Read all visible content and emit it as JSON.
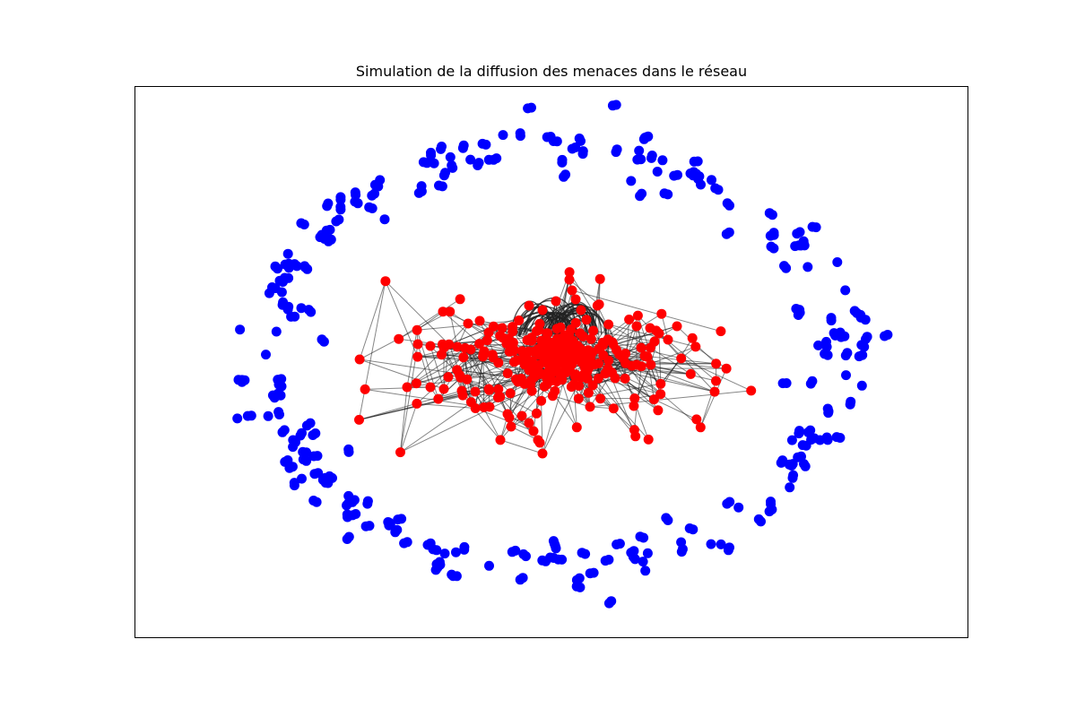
{
  "title": "Simulation de la diffusion des menaces dans le réseau",
  "colors": {
    "infected": "#ff0000",
    "safe": "#0000ff",
    "edge": "#222222",
    "frame": "#000000",
    "background": "#ffffff"
  },
  "chart_data": {
    "type": "network",
    "title": "Simulation de la diffusion des menaces dans le réseau",
    "axes_visible": false,
    "grid": false,
    "legend": false,
    "node_groups": [
      {
        "state": "infected",
        "color": "#ff0000",
        "approx_count": 300
      },
      {
        "state": "safe",
        "color": "#0000ff",
        "approx_count": 400
      }
    ]
  }
}
